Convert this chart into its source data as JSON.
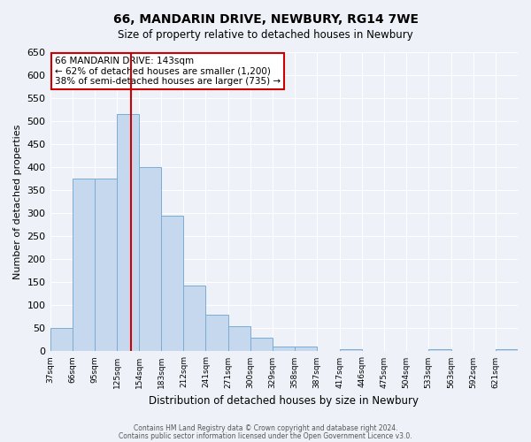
{
  "title": "66, MANDARIN DRIVE, NEWBURY, RG14 7WE",
  "subtitle": "Size of property relative to detached houses in Newbury",
  "xlabel": "Distribution of detached houses by size in Newbury",
  "ylabel": "Number of detached properties",
  "bar_heights": [
    50,
    375,
    375,
    515,
    400,
    295,
    142,
    80,
    55,
    30,
    10,
    10,
    0,
    5,
    0,
    0,
    0,
    5,
    0,
    0,
    5
  ],
  "bin_edges": [
    37,
    66,
    95,
    125,
    154,
    183,
    212,
    241,
    271,
    300,
    329,
    358,
    387,
    417,
    446,
    475,
    504,
    533,
    563,
    592,
    621,
    650
  ],
  "bin_labels": [
    "37sqm",
    "66sqm",
    "95sqm",
    "125sqm",
    "154sqm",
    "183sqm",
    "212sqm",
    "241sqm",
    "271sqm",
    "300sqm",
    "329sqm",
    "358sqm",
    "387sqm",
    "417sqm",
    "446sqm",
    "475sqm",
    "504sqm",
    "533sqm",
    "563sqm",
    "592sqm",
    "621sqm"
  ],
  "bar_color": "#c5d8ee",
  "bar_edge_color": "#7aadd4",
  "vline_x": 143,
  "vline_color": "#cc0000",
  "ylim": [
    0,
    650
  ],
  "yticks": [
    0,
    50,
    100,
    150,
    200,
    250,
    300,
    350,
    400,
    450,
    500,
    550,
    600,
    650
  ],
  "annotation_title": "66 MANDARIN DRIVE: 143sqm",
  "annotation_line1": "← 62% of detached houses are smaller (1,200)",
  "annotation_line2": "38% of semi-detached houses are larger (735) →",
  "annotation_box_color": "#ffffff",
  "annotation_box_edge": "#cc0000",
  "footer1": "Contains HM Land Registry data © Crown copyright and database right 2024.",
  "footer2": "Contains public sector information licensed under the Open Government Licence v3.0.",
  "background_color": "#eef2f8",
  "grid_color": "#ffffff",
  "title_fontsize": 10,
  "subtitle_fontsize": 8.5,
  "ylabel_fontsize": 8,
  "xlabel_fontsize": 8.5
}
